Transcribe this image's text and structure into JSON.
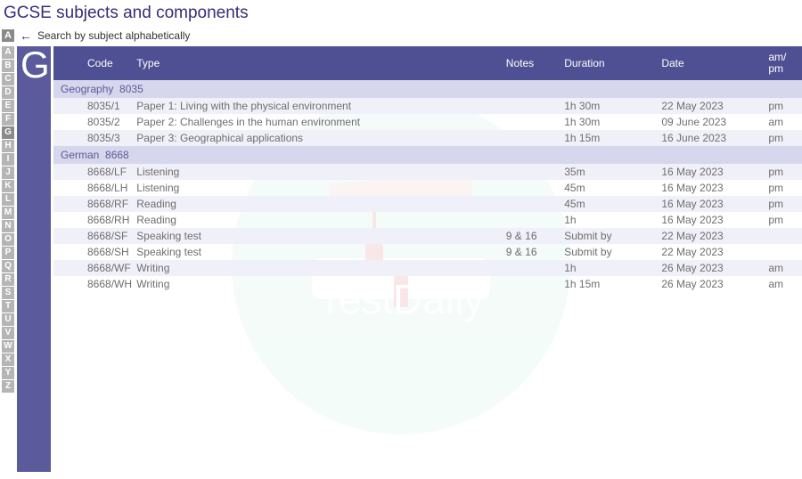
{
  "page_title": "GCSE subjects and components",
  "search_hint": "Search by subject alphabetically",
  "search_letter_box": "A",
  "current_letter": "G",
  "alphabet": [
    "A",
    "B",
    "C",
    "D",
    "E",
    "F",
    "G",
    "H",
    "I",
    "J",
    "K",
    "L",
    "M",
    "N",
    "O",
    "P",
    "Q",
    "R",
    "S",
    "T",
    "U",
    "V",
    "W",
    "X",
    "Y",
    "Z"
  ],
  "columns": {
    "code": "Code",
    "type": "Type",
    "notes": "Notes",
    "duration": "Duration",
    "date": "Date",
    "ampm": "am/\npm"
  },
  "subjects": [
    {
      "name": "Geography",
      "number": "8035",
      "rows": [
        {
          "code": "8035/1",
          "type": "Paper 1: Living with the physical environment",
          "notes": "",
          "duration": "1h 30m",
          "date": "22 May 2023",
          "ampm": "pm"
        },
        {
          "code": "8035/2",
          "type": "Paper 2: Challenges in the human environment",
          "notes": "",
          "duration": "1h 30m",
          "date": "09 June 2023",
          "ampm": "am"
        },
        {
          "code": "8035/3",
          "type": "Paper 3: Geographical applications",
          "notes": "",
          "duration": "1h 15m",
          "date": "16 June 2023",
          "ampm": "pm"
        }
      ]
    },
    {
      "name": "German",
      "number": "8668",
      "rows": [
        {
          "code": "8668/LF",
          "type": "Listening",
          "notes": "",
          "duration": "35m",
          "date": "16 May 2023",
          "ampm": "pm"
        },
        {
          "code": "8668/LH",
          "type": "Listening",
          "notes": "",
          "duration": "45m",
          "date": "16 May 2023",
          "ampm": "pm"
        },
        {
          "code": "8668/RF",
          "type": "Reading",
          "notes": "",
          "duration": "45m",
          "date": "16 May 2023",
          "ampm": "pm"
        },
        {
          "code": "8668/RH",
          "type": "Reading",
          "notes": "",
          "duration": "1h",
          "date": "16 May 2023",
          "ampm": "pm"
        },
        {
          "code": "8668/SF",
          "type": "Speaking test",
          "notes": "9 & 16",
          "duration": "Submit by",
          "date": "22 May 2023",
          "ampm": ""
        },
        {
          "code": "8668/SH",
          "type": "Speaking test",
          "notes": "9 & 16",
          "duration": "Submit by",
          "date": "22 May 2023",
          "ampm": ""
        },
        {
          "code": "8668/WF",
          "type": "Writing",
          "notes": "",
          "duration": "1h",
          "date": "26 May 2023",
          "ampm": "am"
        },
        {
          "code": "8668/WH",
          "type": "Writing",
          "notes": "",
          "duration": "1h 15m",
          "date": "26 May 2023",
          "ampm": "am"
        }
      ]
    }
  ],
  "watermark_text": "TestDaily",
  "colors": {
    "purple": "#5a5a9c",
    "purple_header": "#4f4f94",
    "row_odd": "#f0f0f8",
    "row_hdr": "#d6d6ec",
    "grey_nav": "#b5b5b5",
    "grey_nav_active": "#8a8a8a",
    "text_grey": "#6e6e6e"
  }
}
